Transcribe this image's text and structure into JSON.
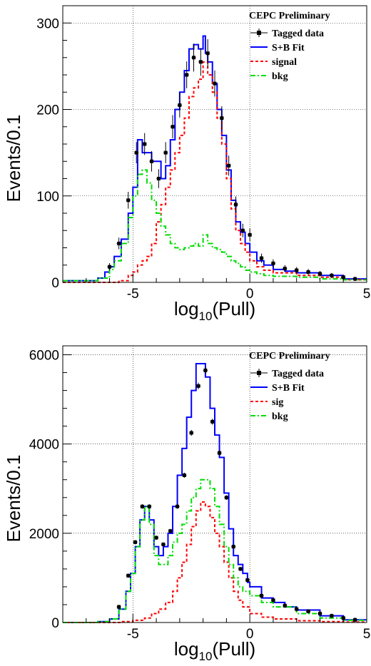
{
  "chart_data": [
    {
      "type": "histogram",
      "xlabel": "log",
      "xlabel_sub": "10",
      "xlabel_tail": "(Pull)",
      "ylabel": "Events/0.1",
      "xlim": [
        -8,
        5
      ],
      "ylim": [
        0,
        320
      ],
      "x_ticks": [
        -5,
        0,
        5
      ],
      "y_ticks": [
        0,
        100,
        200,
        300
      ],
      "grid": true,
      "legend_placement": "top-right",
      "legend_title": "CEPC Preliminary",
      "legend": [
        "Tagged data",
        "S+B Fit",
        "signal",
        "bkg"
      ],
      "colors": {
        "data": "#000000",
        "fit": "#0000ff",
        "signal": "#ff0000",
        "bkg": "#00dd00"
      },
      "series": [
        {
          "name": "S+B Fit",
          "style": "step",
          "color": "#0000ff",
          "x": [
            -8,
            -7,
            -6.5,
            -6.2,
            -6,
            -5.8,
            -5.5,
            -5.2,
            -5,
            -4.8,
            -4.6,
            -4.4,
            -4.2,
            -4,
            -3.8,
            -3.6,
            -3.4,
            -3.2,
            -3,
            -2.8,
            -2.6,
            -2.4,
            -2.2,
            -2,
            -1.9,
            -1.8,
            -1.6,
            -1.4,
            -1.2,
            -1,
            -0.8,
            -0.6,
            -0.4,
            -0.2,
            0,
            0.3,
            0.6,
            1,
            1.5,
            2,
            3,
            4,
            5
          ],
          "y": [
            2,
            2,
            5,
            12,
            18,
            30,
            50,
            80,
            110,
            165,
            150,
            150,
            140,
            140,
            120,
            135,
            165,
            200,
            220,
            245,
            270,
            275,
            270,
            285,
            265,
            255,
            230,
            200,
            170,
            130,
            95,
            70,
            58,
            45,
            35,
            25,
            20,
            15,
            13,
            11,
            8,
            4,
            2
          ]
        },
        {
          "name": "signal",
          "style": "step",
          "color": "#ff0000",
          "x": [
            -8,
            -6,
            -5.6,
            -5.2,
            -5,
            -4.8,
            -4.6,
            -4.4,
            -4.2,
            -4,
            -3.8,
            -3.6,
            -3.4,
            -3.2,
            -3,
            -2.8,
            -2.6,
            -2.4,
            -2.2,
            -2,
            -1.8,
            -1.6,
            -1.4,
            -1.2,
            -1,
            -0.8,
            -0.6,
            -0.4,
            -0.2,
            0,
            0.3,
            0.6,
            1,
            2,
            3,
            4,
            5
          ],
          "y": [
            0,
            0,
            2,
            8,
            12,
            20,
            25,
            30,
            45,
            70,
            90,
            110,
            130,
            150,
            170,
            190,
            215,
            225,
            235,
            255,
            240,
            220,
            190,
            160,
            120,
            85,
            60,
            45,
            35,
            25,
            18,
            14,
            11,
            8,
            6,
            3,
            1
          ]
        },
        {
          "name": "bkg",
          "style": "step",
          "color": "#00dd00",
          "x": [
            -8,
            -7,
            -6.5,
            -6,
            -5.8,
            -5.5,
            -5.2,
            -5,
            -4.8,
            -4.6,
            -4.4,
            -4.2,
            -4,
            -3.8,
            -3.6,
            -3.4,
            -3.2,
            -3,
            -2.8,
            -2.6,
            -2.4,
            -2.2,
            -2,
            -1.8,
            -1.6,
            -1.4,
            -1.2,
            -1,
            -0.8,
            -0.6,
            -0.4,
            -0.2,
            0,
            0.3,
            0.6,
            1,
            2,
            3,
            4,
            5
          ],
          "y": [
            2,
            2,
            5,
            15,
            25,
            45,
            75,
            100,
            125,
            130,
            115,
            95,
            80,
            65,
            55,
            45,
            40,
            38,
            40,
            42,
            45,
            42,
            55,
            45,
            40,
            38,
            35,
            30,
            25,
            22,
            18,
            14,
            12,
            10,
            8,
            7,
            6,
            4,
            3,
            2
          ]
        }
      ],
      "data_points": {
        "name": "Tagged data",
        "x": [
          -6,
          -5.6,
          -5.2,
          -4.85,
          -4.5,
          -4.2,
          -3.9,
          -3.6,
          -3.3,
          -3,
          -2.7,
          -2.4,
          -2.1,
          -1.8,
          -1.5,
          -1.2,
          -0.9,
          -0.6,
          -0.3,
          0,
          0.5,
          1,
          1.5,
          2,
          2.5,
          3,
          3.5,
          4,
          4.5
        ],
        "y": [
          18,
          45,
          95,
          150,
          160,
          140,
          120,
          150,
          180,
          205,
          240,
          260,
          255,
          265,
          230,
          190,
          135,
          90,
          60,
          55,
          28,
          22,
          16,
          14,
          12,
          10,
          8,
          6,
          4
        ]
      }
    },
    {
      "type": "histogram",
      "xlabel": "log",
      "xlabel_sub": "10",
      "xlabel_tail": "(Pull)",
      "ylabel": "Events/0.1",
      "xlim": [
        -8,
        5
      ],
      "ylim": [
        0,
        6200
      ],
      "x_ticks": [
        -5,
        0,
        5
      ],
      "y_ticks": [
        0,
        2000,
        4000,
        6000
      ],
      "grid": true,
      "legend_placement": "top-right",
      "legend_title": "CEPC Preliminary",
      "legend": [
        "Tagged data",
        "S+B Fit",
        "sig",
        "bkg"
      ],
      "colors": {
        "data": "#000000",
        "fit": "#0000ff",
        "signal": "#ff0000",
        "bkg": "#00dd00"
      },
      "series": [
        {
          "name": "S+B Fit",
          "style": "step",
          "color": "#0000ff",
          "x": [
            -8,
            -6.5,
            -6,
            -5.6,
            -5.3,
            -5.1,
            -4.9,
            -4.7,
            -4.5,
            -4.3,
            -4.1,
            -3.9,
            -3.7,
            -3.5,
            -3.3,
            -3.1,
            -2.9,
            -2.7,
            -2.5,
            -2.3,
            -2.1,
            -1.9,
            -1.7,
            -1.5,
            -1.3,
            -1.1,
            -0.9,
            -0.7,
            -0.5,
            -0.3,
            -0.1,
            0,
            0.5,
            1,
            1.5,
            2,
            3,
            4,
            5
          ],
          "y": [
            0,
            20,
            80,
            300,
            700,
            1100,
            1700,
            2300,
            2600,
            2300,
            1700,
            1500,
            1700,
            2000,
            2600,
            3300,
            3900,
            4600,
            5200,
            5800,
            5800,
            5500,
            4800,
            4200,
            3700,
            2900,
            2100,
            1500,
            1300,
            1100,
            900,
            800,
            550,
            450,
            350,
            280,
            150,
            60,
            30
          ]
        },
        {
          "name": "sig",
          "style": "step",
          "color": "#ff0000",
          "x": [
            -8,
            -6,
            -5.5,
            -5,
            -4.5,
            -4.2,
            -3.9,
            -3.6,
            -3.3,
            -3.1,
            -2.9,
            -2.7,
            -2.5,
            -2.3,
            -2.1,
            -1.9,
            -1.7,
            -1.5,
            -1.3,
            -1.1,
            -0.9,
            -0.7,
            -0.5,
            -0.3,
            0,
            0.5,
            1,
            2,
            3,
            4,
            5
          ],
          "y": [
            0,
            0,
            20,
            50,
            100,
            200,
            300,
            450,
            700,
            1000,
            1350,
            1750,
            2150,
            2500,
            2700,
            2600,
            2350,
            2000,
            1700,
            1350,
            1000,
            700,
            500,
            350,
            200,
            120,
            80,
            40,
            20,
            10,
            5
          ]
        },
        {
          "name": "bkg",
          "style": "step",
          "color": "#00dd00",
          "x": [
            -8,
            -6.5,
            -6,
            -5.6,
            -5.3,
            -5.1,
            -4.9,
            -4.7,
            -4.5,
            -4.3,
            -4.1,
            -3.9,
            -3.7,
            -3.5,
            -3.3,
            -3.1,
            -2.9,
            -2.7,
            -2.5,
            -2.3,
            -2.1,
            -1.9,
            -1.7,
            -1.5,
            -1.3,
            -1.1,
            -0.9,
            -0.7,
            -0.5,
            -0.3,
            0,
            0.5,
            1,
            2,
            3,
            4,
            5
          ],
          "y": [
            0,
            20,
            80,
            300,
            700,
            1100,
            1700,
            2300,
            2600,
            2200,
            1500,
            1300,
            1300,
            1500,
            1800,
            2000,
            2200,
            2500,
            2800,
            3000,
            3200,
            3200,
            3000,
            2600,
            2200,
            1700,
            1300,
            1000,
            800,
            700,
            600,
            450,
            350,
            200,
            100,
            50,
            20
          ]
        }
      ],
      "data_points": {
        "name": "Tagged data",
        "x": [
          -5.6,
          -5.2,
          -4.9,
          -4.6,
          -4.3,
          -4,
          -3.7,
          -3.4,
          -3.1,
          -2.8,
          -2.5,
          -2.2,
          -1.9,
          -1.6,
          -1.3,
          -1,
          -0.7,
          -0.4,
          -0.1,
          0.5,
          1,
          1.5,
          2,
          2.5,
          3,
          3.5,
          4,
          4.5
        ],
        "y": [
          350,
          1050,
          1800,
          2600,
          2600,
          1900,
          1750,
          2050,
          2600,
          3300,
          4250,
          5300,
          5650,
          4500,
          3800,
          2800,
          1700,
          1200,
          950,
          600,
          500,
          380,
          300,
          250,
          200,
          150,
          100,
          60
        ]
      }
    }
  ]
}
